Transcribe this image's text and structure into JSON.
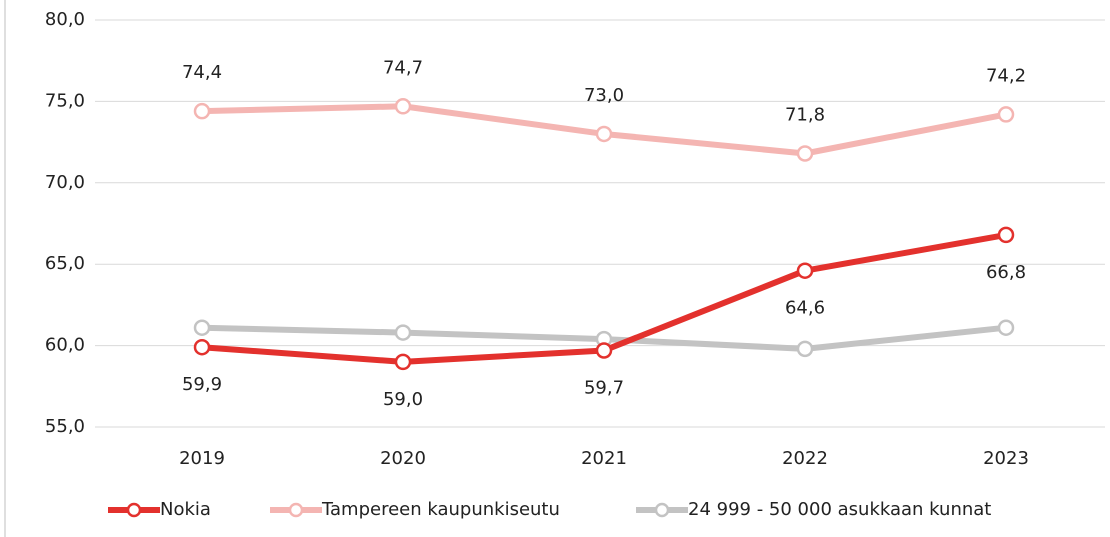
{
  "chart_data": {
    "type": "line",
    "categories": [
      "2019",
      "2020",
      "2021",
      "2022",
      "2023"
    ],
    "series": [
      {
        "name": "Nokia",
        "color": "#e3312d",
        "values": [
          59.9,
          59.0,
          59.7,
          64.6,
          66.8
        ],
        "value_labels": [
          "59,9",
          "59,0",
          "59,7",
          "64,6",
          "66,8"
        ]
      },
      {
        "name": "Tampereen kaupunkiseutu",
        "color": "#f4b5b2",
        "values": [
          74.4,
          74.7,
          73.0,
          71.8,
          74.2
        ],
        "value_labels": [
          "74,4",
          "74,7",
          "73,0",
          "71,8",
          "74,2"
        ]
      },
      {
        "name": "24 999 - 50 000 asukkaan kunnat",
        "color": "#c3c3c3",
        "values": [
          61.1,
          60.8,
          60.4,
          59.8,
          61.1
        ]
      }
    ],
    "ylim": [
      55,
      80
    ],
    "yticks": [
      {
        "value": 55,
        "label": "55,0"
      },
      {
        "value": 60,
        "label": "60,0"
      },
      {
        "value": 65,
        "label": "65,0"
      },
      {
        "value": 70,
        "label": "70,0"
      },
      {
        "value": 75,
        "label": "75,0"
      },
      {
        "value": 80,
        "label": "80,0"
      }
    ],
    "grid": true,
    "legend": "bottom"
  }
}
